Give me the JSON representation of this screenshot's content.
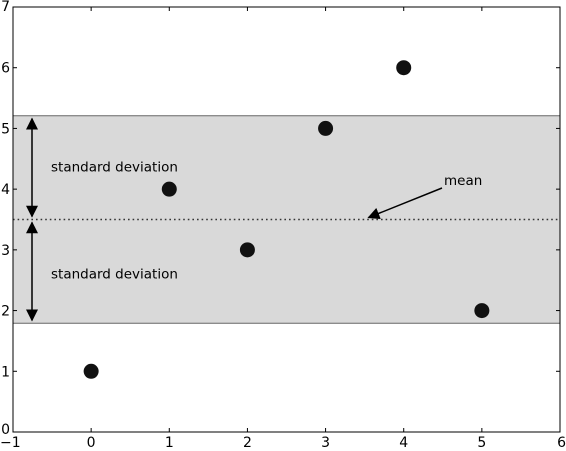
{
  "chart_data": {
    "type": "scatter",
    "title": "",
    "xlabel": "",
    "ylabel": "",
    "xlim": [
      -1,
      6
    ],
    "ylim": [
      0,
      7
    ],
    "x_ticks": [
      "-1",
      "0",
      "1",
      "2",
      "3",
      "4",
      "5",
      "6"
    ],
    "y_ticks": [
      "0",
      "1",
      "2",
      "3",
      "4",
      "5",
      "6",
      "7"
    ],
    "grid": false,
    "points": [
      {
        "x": 0,
        "y": 1
      },
      {
        "x": 1,
        "y": 4
      },
      {
        "x": 2,
        "y": 3
      },
      {
        "x": 3,
        "y": 5
      },
      {
        "x": 4,
        "y": 6
      },
      {
        "x": 5,
        "y": 2
      }
    ],
    "mean": 3.5,
    "std_band": [
      1.79,
      5.21
    ],
    "annotations": {
      "mean_label": "mean",
      "std_upper_label": "standard deviation",
      "std_lower_label": "standard deviation"
    },
    "colors": {
      "band": "#d9d9d9",
      "band_edge": "#8c8c8c",
      "points": "#111111",
      "mean_line": "#333333"
    }
  }
}
